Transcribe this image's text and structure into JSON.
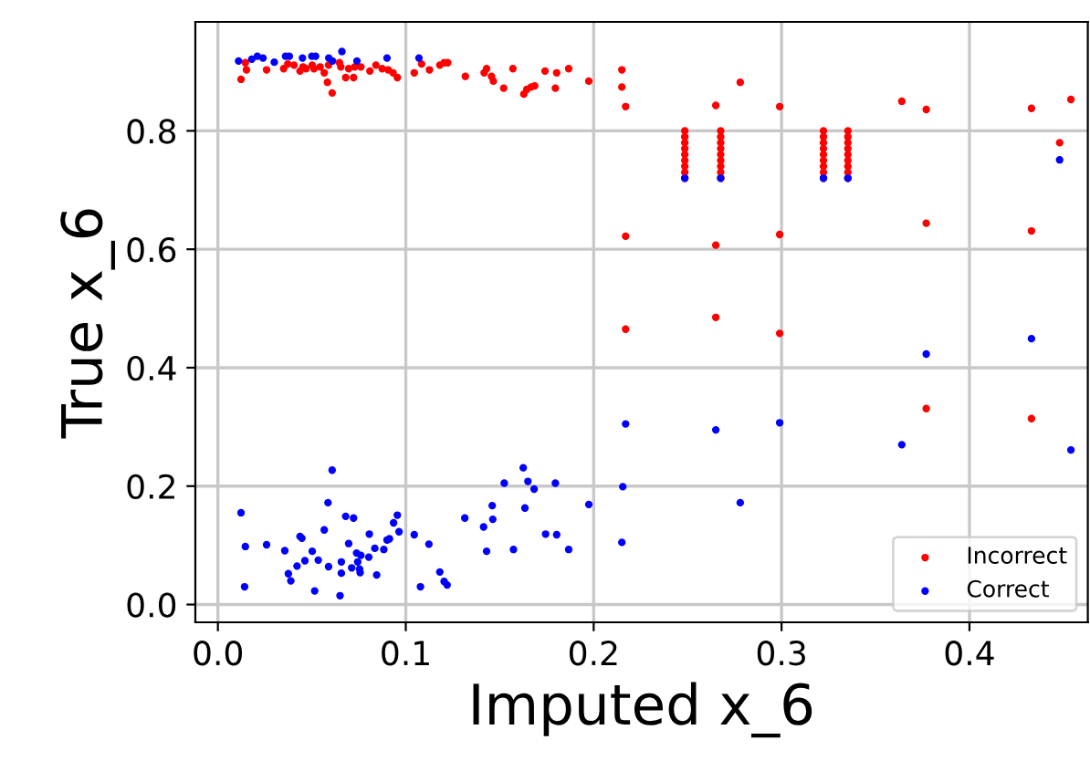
{
  "chart_data": {
    "type": "scatter",
    "xlabel": "Imputed x_6",
    "ylabel": "True x_6",
    "xlim": [
      -0.012,
      0.463
    ],
    "ylim": [
      -0.03,
      0.984
    ],
    "xticks": [
      {
        "value": 0,
        "label": "0.0"
      },
      0.1,
      0.2,
      0.3,
      0.4
    ],
    "yticks": [
      {
        "value": 0,
        "label": "0.0"
      },
      0.2,
      0.4,
      0.6,
      0.8
    ],
    "grid": true,
    "legend": "bottom right",
    "marker": "circle",
    "series": [
      {
        "name": "Incorrect",
        "color": "#ff0000",
        "x": [
          0.0123,
          0.0146,
          0.0152,
          0.0259,
          0.035,
          0.0372,
          0.0405,
          0.0437,
          0.0453,
          0.0469,
          0.0502,
          0.0511,
          0.0544,
          0.0566,
          0.0583,
          0.0589,
          0.0608,
          0.0647,
          0.0654,
          0.068,
          0.0696,
          0.0722,
          0.0728,
          0.0761,
          0.0809,
          0.0841,
          0.0874,
          0.0906,
          0.0932,
          0.0955,
          0.1045,
          0.1084,
          0.1126,
          0.1181,
          0.1204,
          0.1223,
          0.1317,
          0.1417,
          0.143,
          0.1456,
          0.1466,
          0.1521,
          0.157,
          0.1628,
          0.1644,
          0.1667,
          0.1686,
          0.1741,
          0.1796,
          0.1803,
          0.1867,
          0.1974,
          0.215,
          0.215,
          0.217,
          0.265,
          0.278,
          0.299,
          0.364,
          0.377,
          0.433,
          0.454,
          0.448,
          0.217,
          0.265,
          0.299,
          0.377,
          0.433,
          0.217,
          0.265,
          0.299,
          0.377,
          0.433,
          0.2485,
          0.2485,
          0.2485,
          0.2485,
          0.2485,
          0.2485,
          0.2485,
          0.2485,
          0.2485,
          0.2676,
          0.2676,
          0.2676,
          0.2676,
          0.2676,
          0.2676,
          0.2676,
          0.2676,
          0.2676,
          0.3223,
          0.3223,
          0.3223,
          0.3223,
          0.3223,
          0.3223,
          0.3223,
          0.3223,
          0.3223,
          0.3353,
          0.3353,
          0.3353,
          0.3353,
          0.3353,
          0.3353,
          0.3353,
          0.3353,
          0.3353
        ],
        "values": [
          0.887,
          0.915,
          0.903,
          0.903,
          0.905,
          0.913,
          0.911,
          0.901,
          0.908,
          0.905,
          0.911,
          0.905,
          0.908,
          0.898,
          0.882,
          0.911,
          0.864,
          0.915,
          0.908,
          0.89,
          0.905,
          0.89,
          0.908,
          0.908,
          0.901,
          0.911,
          0.905,
          0.903,
          0.898,
          0.89,
          0.898,
          0.913,
          0.903,
          0.911,
          0.915,
          0.915,
          0.892,
          0.898,
          0.905,
          0.892,
          0.884,
          0.872,
          0.905,
          0.862,
          0.87,
          0.874,
          0.876,
          0.901,
          0.872,
          0.898,
          0.905,
          0.884,
          0.903,
          0.874,
          0.841,
          0.843,
          0.882,
          0.841,
          0.85,
          0.836,
          0.838,
          0.853,
          0.78,
          0.622,
          0.607,
          0.625,
          0.644,
          0.631,
          0.465,
          0.485,
          0.458,
          0.331,
          0.314,
          0.72,
          0.73,
          0.74,
          0.75,
          0.76,
          0.77,
          0.78,
          0.79,
          0.8,
          0.72,
          0.73,
          0.74,
          0.75,
          0.76,
          0.77,
          0.78,
          0.79,
          0.8,
          0.72,
          0.73,
          0.74,
          0.75,
          0.76,
          0.77,
          0.78,
          0.79,
          0.8,
          0.72,
          0.73,
          0.74,
          0.75,
          0.76,
          0.77,
          0.78,
          0.79,
          0.8
        ]
      },
      {
        "name": "Correct",
        "color": "#0000ff",
        "x": [
          0.011,
          0.018,
          0.021,
          0.024,
          0.03,
          0.036,
          0.038,
          0.045,
          0.05,
          0.052,
          0.059,
          0.061,
          0.066,
          0.074,
          0.09,
          0.107,
          0.2485,
          0.2676,
          0.3223,
          0.3353,
          0.448,
          0.377,
          0.433,
          0.217,
          0.265,
          0.299,
          0.364,
          0.454,
          0.2155,
          0.278,
          0.215,
          0.0123,
          0.0146,
          0.0142,
          0.0259,
          0.0356,
          0.0375,
          0.0388,
          0.0421,
          0.0437,
          0.0447,
          0.0463,
          0.0502,
          0.0515,
          0.0534,
          0.0566,
          0.0586,
          0.0589,
          0.0608,
          0.065,
          0.0657,
          0.0657,
          0.068,
          0.0696,
          0.0712,
          0.0722,
          0.0738,
          0.0744,
          0.0754,
          0.0757,
          0.0761,
          0.0803,
          0.0806,
          0.0835,
          0.0845,
          0.0883,
          0.09,
          0.0913,
          0.0935,
          0.0955,
          0.0964,
          0.1045,
          0.1078,
          0.1123,
          0.1181,
          0.1204,
          0.122,
          0.1314,
          0.1414,
          0.143,
          0.146,
          0.1463,
          0.1524,
          0.1573,
          0.1625,
          0.1634,
          0.165,
          0.1683,
          0.1744,
          0.1796,
          0.1803,
          0.1867,
          0.1974
        ],
        "values": [
          0.918,
          0.921,
          0.926,
          0.923,
          0.916,
          0.926,
          0.926,
          0.923,
          0.926,
          0.926,
          0.923,
          0.918,
          0.934,
          0.918,
          0.923,
          0.923,
          0.72,
          0.72,
          0.72,
          0.72,
          0.751,
          0.423,
          0.449,
          0.305,
          0.295,
          0.307,
          0.27,
          0.261,
          0.199,
          0.172,
          0.105,
          0.155,
          0.098,
          0.03,
          0.101,
          0.091,
          0.052,
          0.04,
          0.065,
          0.115,
          0.112,
          0.074,
          0.09,
          0.023,
          0.075,
          0.126,
          0.172,
          0.064,
          0.227,
          0.015,
          0.072,
          0.053,
          0.149,
          0.103,
          0.062,
          0.146,
          0.087,
          0.072,
          0.06,
          0.054,
          0.083,
          0.08,
          0.119,
          0.095,
          0.05,
          0.093,
          0.109,
          0.111,
          0.138,
          0.151,
          0.123,
          0.118,
          0.03,
          0.102,
          0.055,
          0.039,
          0.033,
          0.146,
          0.131,
          0.09,
          0.167,
          0.144,
          0.205,
          0.093,
          0.231,
          0.163,
          0.208,
          0.195,
          0.119,
          0.205,
          0.118,
          0.093,
          0.169
        ]
      }
    ]
  }
}
